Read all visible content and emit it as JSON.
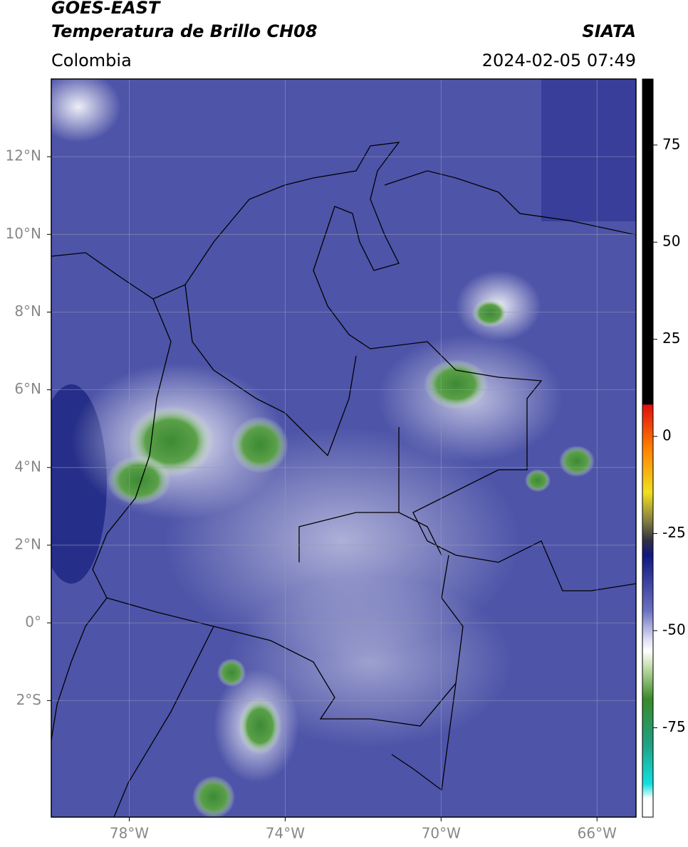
{
  "header": {
    "title": "GOES-EAST",
    "subtitle": "Temperatura de Brillo CH08",
    "source": "SIATA",
    "region": "Colombia",
    "timestamp": "2024-02-05 07:49"
  },
  "map": {
    "lonlim": [
      -80,
      -65
    ],
    "latlim": [
      -5,
      14
    ],
    "grid": true,
    "lonticks": [
      {
        "value": -78,
        "label": "78°W"
      },
      {
        "value": -74,
        "label": "74°W"
      },
      {
        "value": -70,
        "label": "70°W"
      },
      {
        "value": -66,
        "label": "66°W"
      }
    ],
    "latticks": [
      {
        "value": 12,
        "label": "12°N"
      },
      {
        "value": 10,
        "label": "10°N"
      },
      {
        "value": 8,
        "label": "8°N"
      },
      {
        "value": 6,
        "label": "6°N"
      },
      {
        "value": 4,
        "label": "4°N"
      },
      {
        "value": 2,
        "label": "2°N"
      },
      {
        "value": 0,
        "label": "0°"
      },
      {
        "value": -2,
        "label": "2°S"
      }
    ]
  },
  "colorbar": {
    "lim": [
      -98,
      92
    ],
    "ticks": [
      75,
      50,
      25,
      0,
      -25,
      -50,
      -75
    ]
  }
}
